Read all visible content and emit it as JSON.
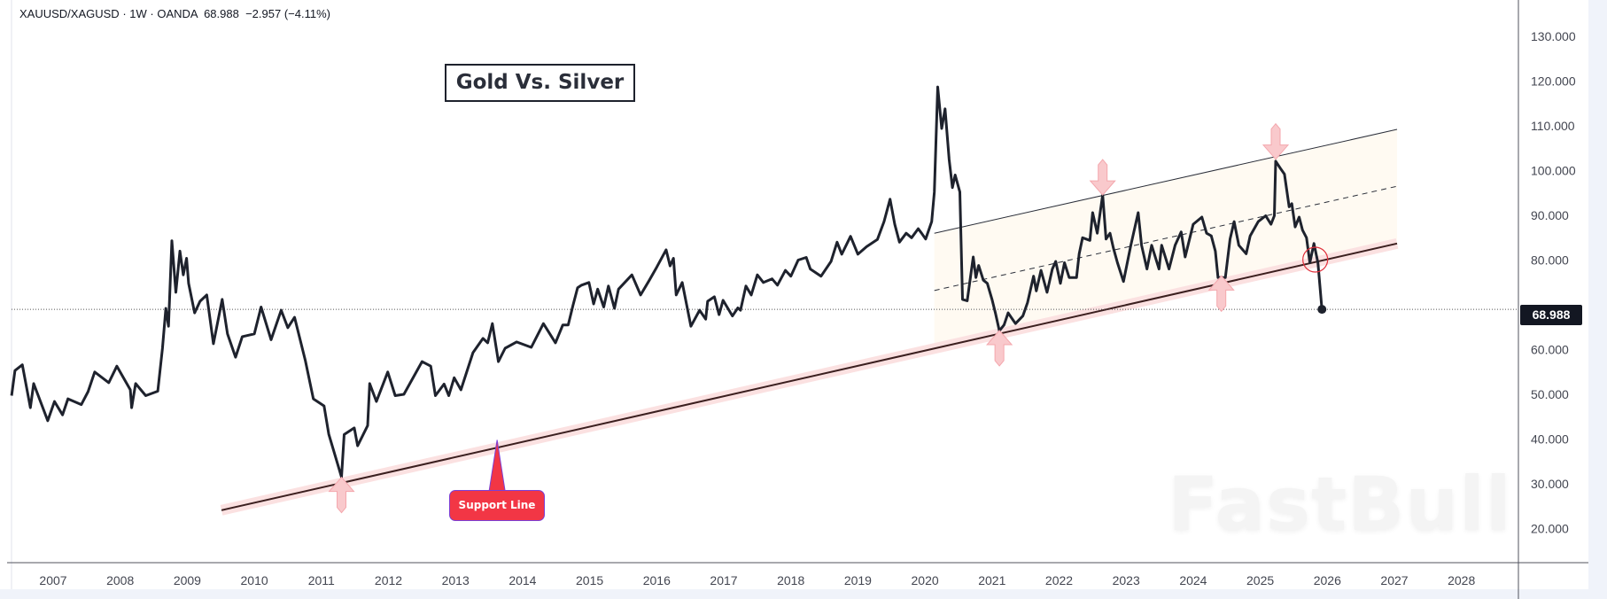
{
  "header": {
    "symbol": "XAUUSD/XAGUSD",
    "interval": "1W",
    "source": "OANDA",
    "last": "68.988",
    "change": "−2.957 (−4.11%)"
  },
  "annotations": {
    "title": "Gold Vs. Silver",
    "support_label": "Support Line",
    "watermark": "FastBull"
  },
  "colors": {
    "price_line": "#1e222d",
    "support_line": "#3b1f1f",
    "support_band": "#fbe1e1",
    "channel_fill": "#fffaf2",
    "arrow_fill": "#f9c9cc",
    "callout": "#f23645",
    "circle": "#e0303c"
  },
  "chart_data": {
    "type": "line",
    "title": "XAUUSD/XAGUSD · 1W · OANDA",
    "xlabel": "",
    "ylabel": "",
    "last_value": 68.988,
    "last_label": "68.988",
    "xlim": [
      2006.38,
      2028.9
    ],
    "ylim": [
      14.5,
      133
    ],
    "x_ticks": [
      "2007",
      "2008",
      "2009",
      "2010",
      "2011",
      "2012",
      "2013",
      "2014",
      "2015",
      "2016",
      "2017",
      "2018",
      "2019",
      "2020",
      "2021",
      "2022",
      "2023",
      "2024",
      "2025",
      "2026",
      "2027",
      "2028"
    ],
    "y_ticks": [
      "130.000",
      "120.000",
      "110.000",
      "100.000",
      "90.000",
      "80.000",
      "60.000",
      "50.000",
      "40.000",
      "30.000",
      "20.000"
    ],
    "y_tick_values": [
      130,
      120,
      110,
      100,
      90,
      80,
      60,
      50,
      40,
      30,
      20
    ],
    "grid": false,
    "series": [
      {
        "name": "XAUUSD/XAGUSD",
        "points": [
          [
            2006.38,
            49.7
          ],
          [
            2006.43,
            55.3
          ],
          [
            2006.54,
            56.6
          ],
          [
            2006.66,
            47
          ],
          [
            2006.71,
            52.4
          ],
          [
            2006.92,
            44.1
          ],
          [
            2007.02,
            48.4
          ],
          [
            2007.14,
            45.4
          ],
          [
            2007.22,
            49
          ],
          [
            2007.42,
            47.7
          ],
          [
            2007.52,
            50.6
          ],
          [
            2007.62,
            55
          ],
          [
            2007.83,
            52.6
          ],
          [
            2007.95,
            56.3
          ],
          [
            2008.15,
            51
          ],
          [
            2008.17,
            47
          ],
          [
            2008.23,
            52.4
          ],
          [
            2008.38,
            49.7
          ],
          [
            2008.56,
            50.7
          ],
          [
            2008.63,
            60.3
          ],
          [
            2008.68,
            69.2
          ],
          [
            2008.72,
            65.2
          ],
          [
            2008.77,
            84.3
          ],
          [
            2008.83,
            72.8
          ],
          [
            2008.89,
            82
          ],
          [
            2008.94,
            76.7
          ],
          [
            2008.99,
            80.4
          ],
          [
            2009.02,
            74.8
          ],
          [
            2009.11,
            68.2
          ],
          [
            2009.19,
            70.8
          ],
          [
            2009.29,
            72.2
          ],
          [
            2009.39,
            61.3
          ],
          [
            2009.52,
            71.2
          ],
          [
            2009.6,
            63.5
          ],
          [
            2009.72,
            58.3
          ],
          [
            2009.82,
            62.9
          ],
          [
            2010.0,
            63.5
          ],
          [
            2010.1,
            69.5
          ],
          [
            2010.25,
            62.2
          ],
          [
            2010.4,
            68.8
          ],
          [
            2010.5,
            64.9
          ],
          [
            2010.6,
            67.2
          ],
          [
            2010.76,
            57.6
          ],
          [
            2010.88,
            49
          ],
          [
            2011.04,
            47.4
          ],
          [
            2011.11,
            41.1
          ],
          [
            2011.3,
            31.5
          ],
          [
            2011.34,
            41
          ],
          [
            2011.49,
            42.5
          ],
          [
            2011.54,
            38.5
          ],
          [
            2011.69,
            43
          ],
          [
            2011.72,
            52.4
          ],
          [
            2011.82,
            48.4
          ],
          [
            2011.99,
            55
          ],
          [
            2012.1,
            49.7
          ],
          [
            2012.23,
            50
          ],
          [
            2012.5,
            57.3
          ],
          [
            2012.63,
            56.3
          ],
          [
            2012.7,
            49.7
          ],
          [
            2012.83,
            52.3
          ],
          [
            2012.9,
            49.7
          ],
          [
            2012.98,
            53.7
          ],
          [
            2013.08,
            51
          ],
          [
            2013.26,
            59.3
          ],
          [
            2013.41,
            62.5
          ],
          [
            2013.48,
            61.5
          ],
          [
            2013.55,
            65.8
          ],
          [
            2013.64,
            57.3
          ],
          [
            2013.74,
            60.3
          ],
          [
            2013.91,
            61.7
          ],
          [
            2014.13,
            60.5
          ],
          [
            2014.31,
            65.8
          ],
          [
            2014.49,
            61.5
          ],
          [
            2014.6,
            65.5
          ],
          [
            2014.68,
            65.5
          ],
          [
            2014.75,
            69.8
          ],
          [
            2014.82,
            73.8
          ],
          [
            2014.88,
            74.4
          ],
          [
            2014.99,
            75
          ],
          [
            2015.06,
            70.2
          ],
          [
            2015.12,
            73.5
          ],
          [
            2015.21,
            69.5
          ],
          [
            2015.28,
            74.2
          ],
          [
            2015.37,
            69.2
          ],
          [
            2015.43,
            73.5
          ],
          [
            2015.63,
            76.7
          ],
          [
            2015.76,
            72.2
          ],
          [
            2015.89,
            75.5
          ],
          [
            2016.0,
            78.4
          ],
          [
            2016.14,
            82.3
          ],
          [
            2016.2,
            78.7
          ],
          [
            2016.25,
            80.4
          ],
          [
            2016.29,
            72.2
          ],
          [
            2016.38,
            75
          ],
          [
            2016.51,
            65.2
          ],
          [
            2016.64,
            68.8
          ],
          [
            2016.73,
            66.8
          ],
          [
            2016.76,
            70.8
          ],
          [
            2016.86,
            71.8
          ],
          [
            2016.93,
            67.8
          ],
          [
            2016.99,
            71
          ],
          [
            2017.13,
            67.5
          ],
          [
            2017.21,
            69.3
          ],
          [
            2017.25,
            68.8
          ],
          [
            2017.33,
            74.2
          ],
          [
            2017.41,
            72.2
          ],
          [
            2017.5,
            76.7
          ],
          [
            2017.59,
            75
          ],
          [
            2017.72,
            75.8
          ],
          [
            2017.8,
            74.4
          ],
          [
            2017.92,
            77.7
          ],
          [
            2018.0,
            76.4
          ],
          [
            2018.11,
            80
          ],
          [
            2018.23,
            80.6
          ],
          [
            2018.29,
            78
          ],
          [
            2018.45,
            76.4
          ],
          [
            2018.6,
            79.7
          ],
          [
            2018.69,
            84
          ],
          [
            2018.76,
            81.3
          ],
          [
            2018.89,
            85.3
          ],
          [
            2019.0,
            81.3
          ],
          [
            2019.13,
            83
          ],
          [
            2019.29,
            84.6
          ],
          [
            2019.39,
            88.6
          ],
          [
            2019.48,
            93.6
          ],
          [
            2019.55,
            88
          ],
          [
            2019.62,
            84
          ],
          [
            2019.72,
            86
          ],
          [
            2019.8,
            85
          ],
          [
            2019.9,
            87
          ],
          [
            2019.95,
            86
          ],
          [
            2020.01,
            84.7
          ],
          [
            2020.1,
            88.6
          ],
          [
            2020.14,
            95.2
          ],
          [
            2020.19,
            118.7
          ],
          [
            2020.25,
            109.4
          ],
          [
            2020.3,
            113.8
          ],
          [
            2020.36,
            102.5
          ],
          [
            2020.41,
            96.2
          ],
          [
            2020.45,
            99
          ],
          [
            2020.52,
            95.2
          ],
          [
            2020.56,
            71.2
          ],
          [
            2020.63,
            70.9
          ],
          [
            2020.72,
            80.7
          ],
          [
            2020.76,
            76.1
          ],
          [
            2020.8,
            78.8
          ],
          [
            2020.87,
            75.5
          ],
          [
            2020.93,
            74.8
          ],
          [
            2021.0,
            71.2
          ],
          [
            2021.05,
            68.2
          ],
          [
            2021.11,
            64.2
          ],
          [
            2021.18,
            65.5
          ],
          [
            2021.24,
            68.2
          ],
          [
            2021.35,
            65.8
          ],
          [
            2021.46,
            67.5
          ],
          [
            2021.53,
            70.5
          ],
          [
            2021.62,
            76.4
          ],
          [
            2021.66,
            73.1
          ],
          [
            2021.73,
            77.7
          ],
          [
            2021.82,
            72.8
          ],
          [
            2021.9,
            78
          ],
          [
            2021.95,
            79.7
          ],
          [
            2022.02,
            74.8
          ],
          [
            2022.08,
            79.4
          ],
          [
            2022.15,
            76.1
          ],
          [
            2022.26,
            76.1
          ],
          [
            2022.3,
            81.4
          ],
          [
            2022.35,
            85
          ],
          [
            2022.46,
            84.4
          ],
          [
            2022.5,
            90.6
          ],
          [
            2022.57,
            86
          ],
          [
            2022.65,
            94.6
          ],
          [
            2022.7,
            84.7
          ],
          [
            2022.76,
            86
          ],
          [
            2022.81,
            82.7
          ],
          [
            2022.87,
            79.4
          ],
          [
            2022.96,
            75.2
          ],
          [
            2023.07,
            83.3
          ],
          [
            2023.18,
            90.6
          ],
          [
            2023.23,
            83.3
          ],
          [
            2023.31,
            78
          ],
          [
            2023.38,
            83.3
          ],
          [
            2023.49,
            78
          ],
          [
            2023.53,
            83.3
          ],
          [
            2023.64,
            78
          ],
          [
            2023.73,
            83.3
          ],
          [
            2023.82,
            86.3
          ],
          [
            2023.88,
            80.7
          ],
          [
            2024.0,
            88
          ],
          [
            2024.13,
            89.6
          ],
          [
            2024.2,
            86
          ],
          [
            2024.27,
            85.4
          ],
          [
            2024.33,
            82
          ],
          [
            2024.37,
            76.1
          ],
          [
            2024.48,
            76.1
          ],
          [
            2024.55,
            84.7
          ],
          [
            2024.61,
            88.6
          ],
          [
            2024.68,
            83.3
          ],
          [
            2024.79,
            81.4
          ],
          [
            2024.85,
            85.4
          ],
          [
            2024.97,
            88.6
          ],
          [
            2025.08,
            89.9
          ],
          [
            2025.16,
            88
          ],
          [
            2025.21,
            89.9
          ],
          [
            2025.23,
            102.1
          ],
          [
            2025.3,
            100.5
          ],
          [
            2025.36,
            99.2
          ],
          [
            2025.43,
            91.9
          ],
          [
            2025.47,
            92.6
          ],
          [
            2025.52,
            87.4
          ],
          [
            2025.58,
            89.6
          ],
          [
            2025.63,
            86.7
          ],
          [
            2025.69,
            85
          ],
          [
            2025.74,
            79.4
          ],
          [
            2025.8,
            83.7
          ],
          [
            2025.86,
            79.4
          ],
          [
            2025.92,
            68.988
          ]
        ]
      }
    ],
    "drawings": {
      "support_line": {
        "from": [
          2009.51,
          24.1
        ],
        "to": [
          2027.04,
          83.7
        ]
      },
      "channel_upper": {
        "from": [
          2020.14,
          86.0
        ],
        "to": [
          2027.04,
          109.2
        ]
      },
      "channel_mid": {
        "from": [
          2020.14,
          73.2
        ],
        "to": [
          2027.04,
          96.5
        ]
      },
      "arrows": [
        {
          "dir": "up",
          "at": [
            2011.3,
            27.5
          ]
        },
        {
          "dir": "up",
          "at": [
            2021.11,
            60.3
          ]
        },
        {
          "dir": "down",
          "at": [
            2022.65,
            98.5
          ]
        },
        {
          "dir": "up",
          "at": [
            2024.42,
            72.5
          ]
        },
        {
          "dir": "down",
          "at": [
            2025.23,
            106.5
          ]
        }
      ],
      "breakdown_circle": [
        2025.82,
        80.1
      ],
      "support_label_anchor": [
        2013.62,
        39.8
      ]
    }
  }
}
